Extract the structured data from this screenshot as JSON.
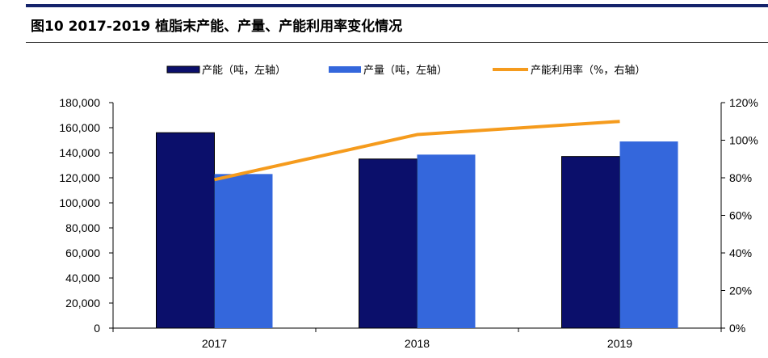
{
  "figure": {
    "title": "图10 2017-2019 植脂末产能、产量、产能利用率变化情况"
  },
  "colors": {
    "capacity": "#0b0f6b",
    "output": "#3467dc",
    "utilization": "#f59b1d",
    "top_rule": "#14236b"
  },
  "chart_data": {
    "type": "bar",
    "categories": [
      "2017",
      "2018",
      "2019"
    ],
    "series": [
      {
        "name": "产能（吨，左轴）",
        "type": "bar",
        "axis": "left",
        "values": [
          156000,
          135000,
          137000
        ]
      },
      {
        "name": "产量（吨，左轴）",
        "type": "bar",
        "axis": "left",
        "values": [
          123000,
          138500,
          149000
        ]
      },
      {
        "name": "产能利用率（%，右轴）",
        "type": "line",
        "axis": "right",
        "values": [
          79,
          103,
          110
        ]
      }
    ],
    "left_axis": {
      "ylim": [
        0,
        180000
      ],
      "ticks": [
        "0",
        "20,000",
        "40,000",
        "60,000",
        "80,000",
        "100,000",
        "120,000",
        "140,000",
        "160,000",
        "180,000"
      ]
    },
    "right_axis": {
      "ylim": [
        0,
        120
      ],
      "ticks": [
        "0%",
        "20%",
        "40%",
        "60%",
        "80%",
        "100%",
        "120%"
      ]
    },
    "legend_position": "top",
    "grid": false
  }
}
